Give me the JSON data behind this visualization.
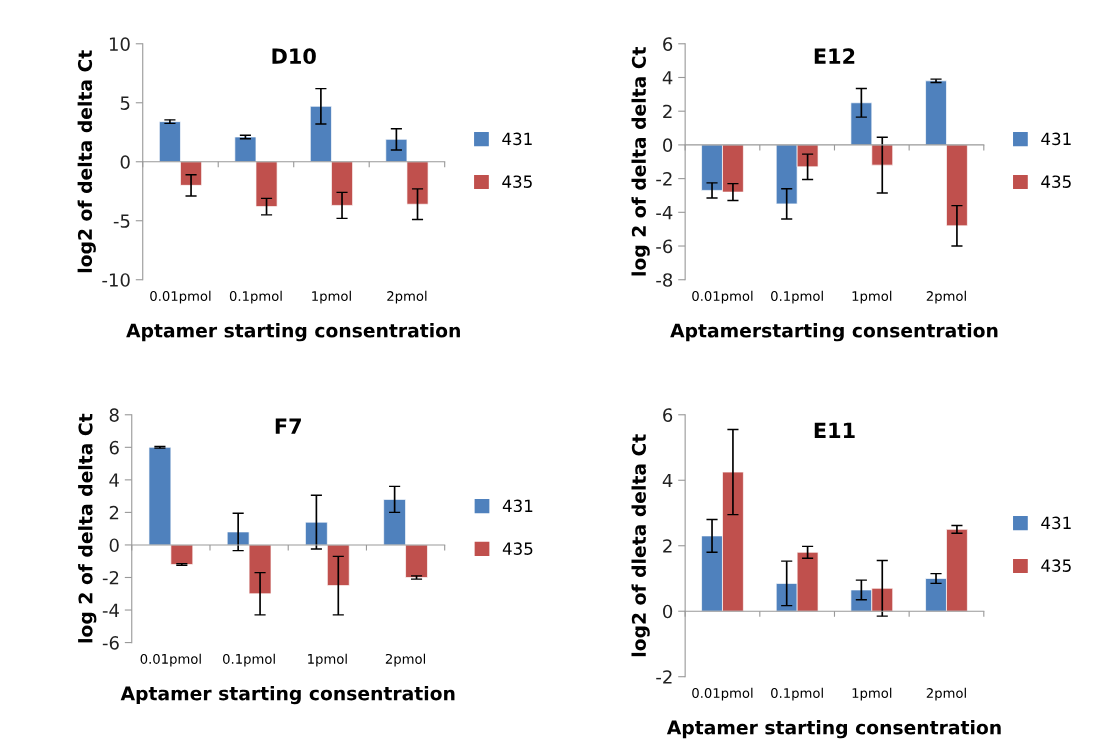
{
  "chart_data": [
    {
      "type": "bar",
      "title": "D10",
      "xlabel": "Aptamer starting consentration",
      "ylabel": "log2 of delta delta Ct",
      "categories": [
        "0.01pmol",
        "0.1pmol",
        "1pmol",
        "2pmol"
      ],
      "ylim": [
        -10,
        10
      ],
      "yticks": [
        -10,
        -5,
        0,
        5,
        10
      ],
      "legend": "right",
      "series": [
        {
          "name": "431",
          "color": "#4f81bd",
          "values": [
            3.4,
            2.1,
            4.7,
            1.9
          ],
          "errors": [
            0.15,
            0.15,
            1.5,
            0.9
          ]
        },
        {
          "name": "435",
          "color": "#c0504d",
          "values": [
            -2.0,
            -3.8,
            -3.7,
            -3.6
          ],
          "errors": [
            0.9,
            0.7,
            1.1,
            1.3
          ]
        }
      ]
    },
    {
      "type": "bar",
      "title": "E12",
      "xlabel": "Aptamerstarting consentration",
      "ylabel": "log 2 of delta delta Ct",
      "categories": [
        "0.01pmol",
        "0.1pmol",
        "1pmol",
        "2pmol"
      ],
      "ylim": [
        -8,
        6
      ],
      "yticks": [
        -8,
        -6,
        -4,
        -2,
        0,
        2,
        4,
        6
      ],
      "legend": "right",
      "series": [
        {
          "name": "431",
          "color": "#4f81bd",
          "values": [
            -2.7,
            -3.5,
            2.5,
            3.8
          ],
          "errors": [
            0.45,
            0.9,
            0.85,
            0.1
          ]
        },
        {
          "name": "435",
          "color": "#c0504d",
          "values": [
            -2.8,
            -1.3,
            -1.2,
            -4.8
          ],
          "errors": [
            0.5,
            0.75,
            1.65,
            1.2
          ]
        }
      ]
    },
    {
      "type": "bar",
      "title": "F7",
      "xlabel": "Aptamer starting consentration",
      "ylabel": "log 2 of delta delta Ct",
      "categories": [
        "0.01pmol",
        "0.1pmol",
        "1pmol",
        "2pmol"
      ],
      "ylim": [
        -6,
        8
      ],
      "yticks": [
        -6,
        -4,
        -2,
        0,
        2,
        4,
        6,
        8
      ],
      "legend": "right",
      "series": [
        {
          "name": "431",
          "color": "#4f81bd",
          "values": [
            6.0,
            0.8,
            1.4,
            2.8
          ],
          "errors": [
            0.05,
            1.15,
            1.65,
            0.8
          ]
        },
        {
          "name": "435",
          "color": "#c0504d",
          "values": [
            -1.2,
            -3.0,
            -2.5,
            -2.0
          ],
          "errors": [
            0.05,
            1.3,
            1.8,
            0.1
          ]
        }
      ]
    },
    {
      "type": "bar",
      "title": "E11",
      "xlabel": "Aptamer starting consentration",
      "ylabel": "log2 of dleta delta Ct",
      "categories": [
        "0.01pmol",
        "0.1pmol",
        "1pmol",
        "2pmol"
      ],
      "ylim": [
        -2,
        6
      ],
      "yticks": [
        -2,
        0,
        2,
        4,
        6
      ],
      "legend": "right",
      "series": [
        {
          "name": "431",
          "color": "#4f81bd",
          "values": [
            2.3,
            0.85,
            0.65,
            1.0
          ],
          "errors": [
            0.5,
            0.68,
            0.3,
            0.15
          ]
        },
        {
          "name": "435",
          "color": "#c0504d",
          "values": [
            4.25,
            1.8,
            0.7,
            2.5
          ],
          "errors": [
            1.3,
            0.18,
            0.85,
            0.12
          ]
        }
      ]
    }
  ]
}
